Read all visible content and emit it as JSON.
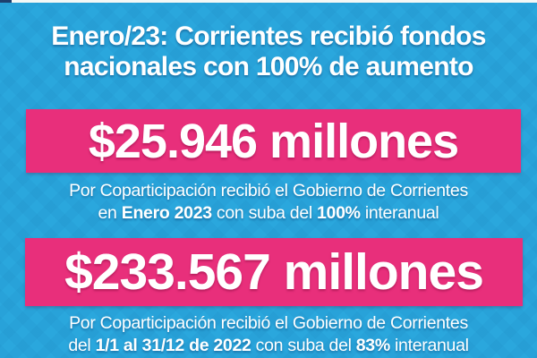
{
  "brand": {
    "background_cyan": "#2AA7DD",
    "banner_pink": "#E82F7B",
    "text_white": "#FFFFFF",
    "corner_navy": "#1E3F6E"
  },
  "header": {
    "title_line1": "Enero/23: Corrientes recibió fondos",
    "title_line2": "nacionales con 100% de aumento"
  },
  "stat1": {
    "amount": "$25.946 millones",
    "desc_line1": "Por Coparticipación recibió el Gobierno de Corrientes",
    "desc_line2": {
      "pre": "en ",
      "bold1": "Enero 2023",
      "mid": " con suba del ",
      "bold2": "100%",
      "post": " interanual"
    }
  },
  "stat2": {
    "amount": "$233.567 millones",
    "desc_line1": "Por Coparticipación recibió el Gobierno de Corrientes",
    "desc_line2": {
      "pre": "del ",
      "bold1": "1/1 al 31/12 de 2022",
      "mid": " con suba del ",
      "bold2": "83%",
      "post": " interanual"
    }
  }
}
